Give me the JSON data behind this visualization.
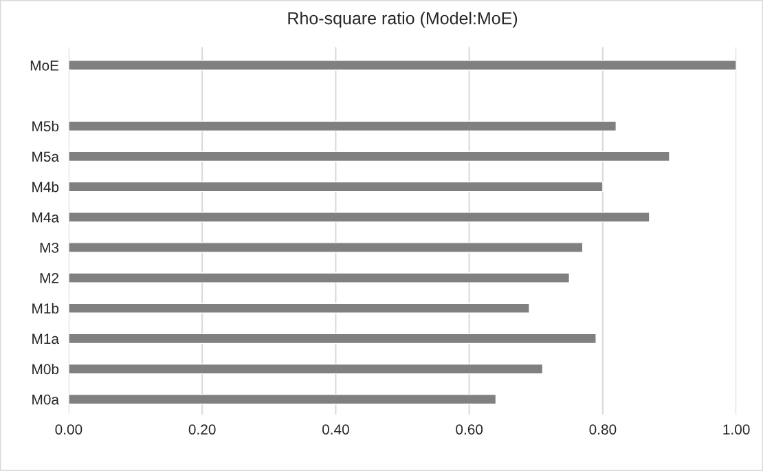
{
  "chart_data": {
    "type": "bar",
    "orientation": "horizontal",
    "title": "Rho-square ratio (Model:MoE)",
    "categories": [
      "MoE",
      null,
      "M5b",
      "M5a",
      "M4b",
      "M4a",
      "M3",
      "M2",
      "M1b",
      "M1a",
      "M0b",
      "M0a"
    ],
    "values": [
      1.0,
      null,
      0.82,
      0.9,
      0.8,
      0.87,
      0.77,
      0.75,
      0.69,
      0.79,
      0.71,
      0.64
    ],
    "color": "#808080",
    "xlim": [
      0,
      1
    ],
    "xticks": [
      {
        "value": 0,
        "label": "0.00"
      },
      {
        "value": 0.2,
        "label": "0.20"
      },
      {
        "value": 0.4,
        "label": "0.40"
      },
      {
        "value": 0.6,
        "label": "0.60"
      },
      {
        "value": 0.8,
        "label": "0.80"
      },
      {
        "value": 1,
        "label": "1.00"
      }
    ],
    "grid": "x",
    "legend": false
  }
}
